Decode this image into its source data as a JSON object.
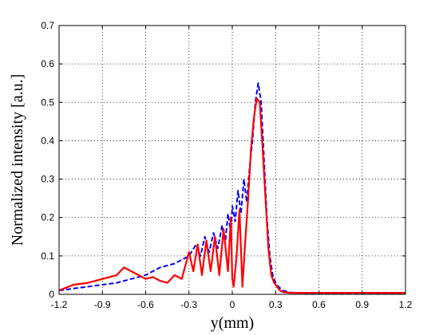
{
  "chart_data": {
    "type": "line",
    "title": "",
    "xlabel": "y(mm)",
    "ylabel": "Normalized intensity [a.u.]",
    "xlim": [
      -1.2,
      1.2
    ],
    "ylim": [
      0,
      0.7
    ],
    "grid": true,
    "grid_style": "dotted",
    "xticks": [
      -1.2,
      -0.9,
      -0.6,
      -0.3,
      0,
      0.3,
      0.6,
      0.9,
      1.2
    ],
    "xtick_labels": [
      "-1.2",
      "-0.9",
      "-0.6",
      "-0.3",
      "0",
      "0.3",
      "0.6",
      "0.9",
      "1.2"
    ],
    "yticks": [
      0,
      0.1,
      0.2,
      0.3,
      0.4,
      0.5,
      0.6,
      0.7
    ],
    "ytick_labels": [
      "0",
      "0.1",
      "0.2",
      "0.3",
      "0.4",
      "0.5",
      "0.6",
      "0.7"
    ],
    "series": [
      {
        "color": "#0000ff",
        "style": "dashed",
        "x": [
          -1.2,
          -1.1,
          -1.0,
          -0.9,
          -0.8,
          -0.7,
          -0.6,
          -0.55,
          -0.5,
          -0.45,
          -0.4,
          -0.35,
          -0.3,
          -0.25,
          -0.22,
          -0.19,
          -0.16,
          -0.13,
          -0.1,
          -0.07,
          -0.05,
          -0.03,
          -0.01,
          0.0,
          0.02,
          0.04,
          0.06,
          0.08,
          0.1,
          0.12,
          0.14,
          0.16,
          0.18,
          0.2,
          0.22,
          0.24,
          0.26,
          0.28,
          0.3,
          0.32,
          0.35,
          0.4,
          0.5,
          0.6,
          0.8,
          1.0,
          1.2
        ],
        "y": [
          0.01,
          0.015,
          0.02,
          0.025,
          0.03,
          0.04,
          0.05,
          0.06,
          0.07,
          0.075,
          0.08,
          0.09,
          0.1,
          0.13,
          0.1,
          0.15,
          0.11,
          0.16,
          0.12,
          0.18,
          0.13,
          0.21,
          0.16,
          0.23,
          0.19,
          0.27,
          0.21,
          0.3,
          0.24,
          0.33,
          0.4,
          0.5,
          0.55,
          0.5,
          0.35,
          0.2,
          0.1,
          0.05,
          0.03,
          0.02,
          0.01,
          0.005,
          0.003,
          0.003,
          0.003,
          0.003,
          0.003
        ]
      },
      {
        "color": "#ff0000",
        "style": "solid",
        "x": [
          -1.2,
          -1.1,
          -1.0,
          -0.9,
          -0.8,
          -0.75,
          -0.7,
          -0.65,
          -0.6,
          -0.55,
          -0.5,
          -0.45,
          -0.4,
          -0.35,
          -0.3,
          -0.27,
          -0.24,
          -0.21,
          -0.18,
          -0.15,
          -0.12,
          -0.09,
          -0.06,
          -0.03,
          -0.01,
          0.0,
          0.01,
          0.03,
          0.05,
          0.07,
          0.09,
          0.11,
          0.13,
          0.15,
          0.17,
          0.19,
          0.21,
          0.23,
          0.25,
          0.27,
          0.29,
          0.31,
          0.33,
          0.35,
          0.4,
          0.5,
          0.6,
          0.8,
          1.0,
          1.2
        ],
        "y": [
          0.01,
          0.025,
          0.03,
          0.04,
          0.05,
          0.07,
          0.06,
          0.05,
          0.04,
          0.045,
          0.035,
          0.03,
          0.05,
          0.04,
          0.11,
          0.06,
          0.13,
          0.05,
          0.14,
          0.06,
          0.15,
          0.05,
          0.17,
          0.06,
          0.2,
          0.04,
          0.02,
          0.1,
          0.22,
          0.02,
          0.14,
          0.25,
          0.38,
          0.46,
          0.51,
          0.5,
          0.38,
          0.25,
          0.12,
          0.05,
          0.03,
          0.02,
          0.01,
          0.006,
          0.004,
          0.004,
          0.004,
          0.004,
          0.004,
          0.004
        ]
      }
    ]
  }
}
